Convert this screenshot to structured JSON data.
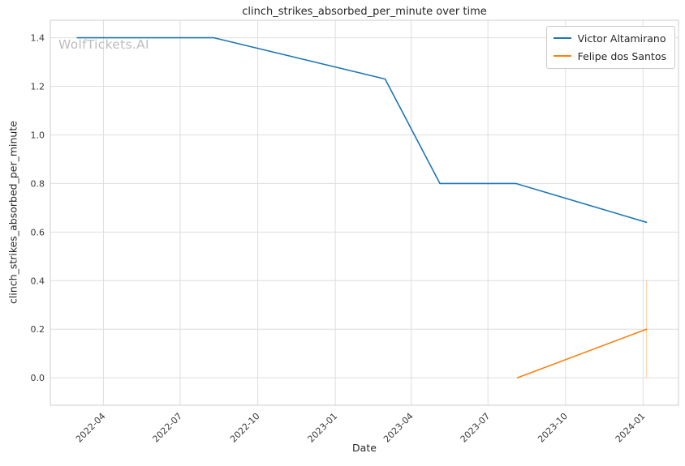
{
  "watermark": "WolfTickets.AI",
  "chart_data": {
    "type": "line",
    "title": "clinch_strikes_absorbed_per_minute over time",
    "xlabel": "Date",
    "ylabel": "clinch_strikes_absorbed_per_minute",
    "grid": true,
    "legend_position": "upper right",
    "x_tick_labels": [
      "2022-04",
      "2022-07",
      "2022-10",
      "2023-01",
      "2023-04",
      "2023-07",
      "2023-10",
      "2024-01"
    ],
    "y_tick_labels": [
      "0.0",
      "0.2",
      "0.4",
      "0.6",
      "0.8",
      "1.0",
      "1.2",
      "1.4"
    ],
    "xlim": [
      "2022-01-28",
      "2024-02-12"
    ],
    "ylim": [
      -0.113,
      1.472
    ],
    "style": {
      "grid_color": "#dedede",
      "spine_color": "#cccccc",
      "tick_label_color": "#3a3a3a"
    },
    "series": [
      {
        "name": "Victor Altamirano",
        "color": "#1f77b4",
        "points": [
          {
            "x": "2022-03-01",
            "y": 1.4
          },
          {
            "x": "2022-08-10",
            "y": 1.4
          },
          {
            "x": "2023-03-01",
            "y": 1.23
          },
          {
            "x": "2023-05-05",
            "y": 0.8
          },
          {
            "x": "2023-08-03",
            "y": 0.8
          },
          {
            "x": "2024-01-05",
            "y": 0.64
          }
        ]
      },
      {
        "name": "Felipe dos Santos",
        "color": "#ff7f0e",
        "points": [
          {
            "x": "2023-08-05",
            "y": 0.0
          },
          {
            "x": "2024-01-05",
            "y": 0.2
          }
        ]
      }
    ],
    "annotations": [
      {
        "type": "vline",
        "x": "2024-01-05",
        "y0": 0.0,
        "y1": 0.4,
        "color": "#ff7f0e",
        "opacity": 0.35
      }
    ]
  }
}
